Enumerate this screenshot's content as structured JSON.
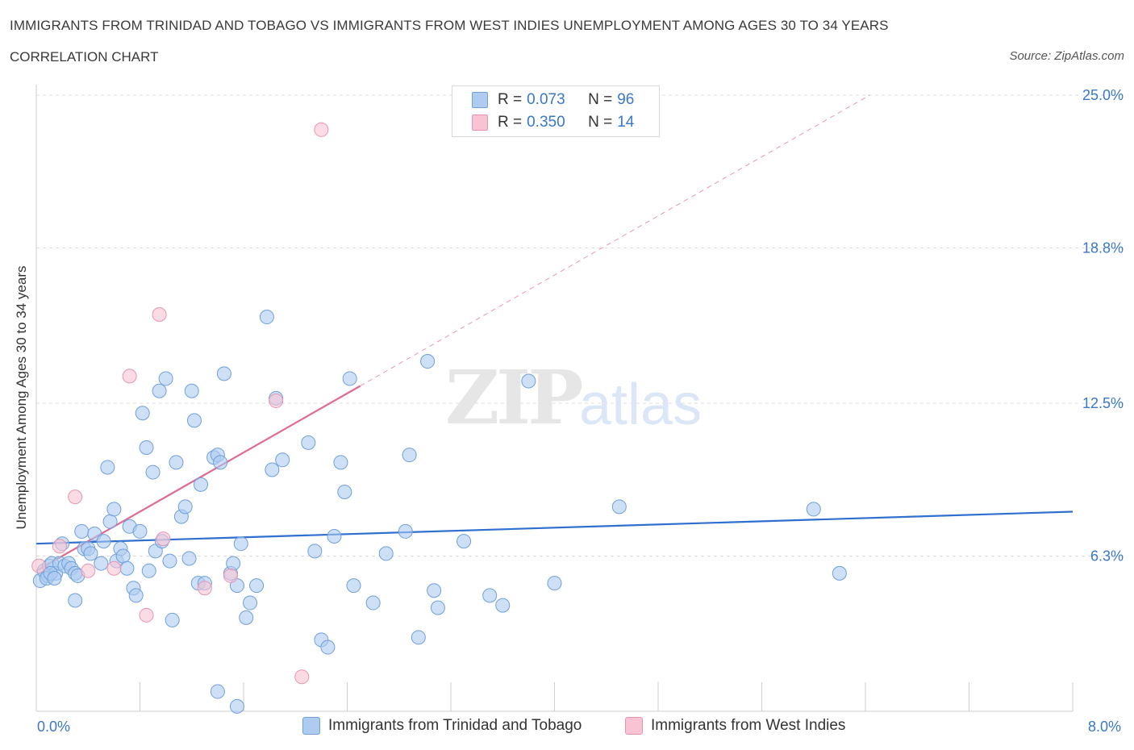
{
  "header": {
    "title": "IMMIGRANTS FROM TRINIDAD AND TOBAGO VS IMMIGRANTS FROM WEST INDIES UNEMPLOYMENT AMONG AGES 30 TO 34 YEARS",
    "subtitle": "CORRELATION CHART",
    "source": "Source: ZipAtlas.com"
  },
  "legend": {
    "rows": [
      {
        "r_label": "R =",
        "r_value": "0.073",
        "n_label": "N =",
        "n_value": "96"
      },
      {
        "r_label": "R =",
        "r_value": "0.350",
        "n_label": "N =",
        "n_value": "14"
      }
    ]
  },
  "watermark": {
    "zip": "ZIP",
    "atlas": "atlas"
  },
  "colors": {
    "blue_fill": "#aecbf0",
    "blue_stroke": "#6f9fdc",
    "blue_line": "#2f6fcf",
    "pink_fill": "#f8c4d4",
    "pink_stroke": "#e894b0",
    "pink_line": "#e06a93",
    "tick_text": "#3a78c9",
    "grid": "#dddddd"
  },
  "chart_data": {
    "type": "scatter",
    "title": "IMMIGRANTS FROM TRINIDAD AND TOBAGO VS IMMIGRANTS FROM WEST INDIES UNEMPLOYMENT AMONG AGES 30 TO 34 YEARS",
    "subtitle": "CORRELATION CHART",
    "xlabel": "",
    "ylabel": "Unemployment Among Ages 30 to 34 years",
    "xlim": [
      0,
      8
    ],
    "ylim": [
      0,
      25
    ],
    "x_tick_labels": [
      "0.0%",
      "8.0%"
    ],
    "y_ticks": [
      6.3,
      12.5,
      18.8,
      25.0
    ],
    "y_tick_labels": [
      "6.3%",
      "12.5%",
      "18.8%",
      "25.0%"
    ],
    "grid": true,
    "legend_position": "top-center",
    "series": [
      {
        "name": "Immigrants from Trinidad and Tobago",
        "color": "#aecbf0",
        "trend": {
          "x": [
            0.0,
            8.0
          ],
          "y": [
            6.8,
            8.1
          ]
        },
        "points": [
          [
            0.03,
            5.3
          ],
          [
            0.06,
            5.7
          ],
          [
            0.09,
            5.5
          ],
          [
            0.1,
            5.9
          ],
          [
            0.12,
            6.0
          ],
          [
            0.15,
            5.6
          ],
          [
            0.18,
            6.0
          ],
          [
            0.2,
            6.8
          ],
          [
            0.22,
            5.9
          ],
          [
            0.25,
            6.0
          ],
          [
            0.27,
            5.8
          ],
          [
            0.3,
            5.6
          ],
          [
            0.32,
            5.5
          ],
          [
            0.35,
            7.3
          ],
          [
            0.37,
            6.6
          ],
          [
            0.4,
            6.6
          ],
          [
            0.42,
            6.4
          ],
          [
            0.45,
            7.2
          ],
          [
            0.5,
            6.0
          ],
          [
            0.52,
            6.9
          ],
          [
            0.55,
            9.9
          ],
          [
            0.57,
            7.7
          ],
          [
            0.6,
            8.2
          ],
          [
            0.62,
            6.1
          ],
          [
            0.65,
            6.6
          ],
          [
            0.67,
            6.3
          ],
          [
            0.7,
            5.8
          ],
          [
            0.72,
            7.5
          ],
          [
            0.75,
            5.0
          ],
          [
            0.77,
            4.7
          ],
          [
            0.8,
            7.3
          ],
          [
            0.82,
            12.1
          ],
          [
            0.85,
            10.7
          ],
          [
            0.87,
            5.7
          ],
          [
            0.9,
            9.7
          ],
          [
            0.92,
            6.5
          ],
          [
            0.95,
            13.0
          ],
          [
            0.97,
            6.9
          ],
          [
            1.0,
            13.5
          ],
          [
            1.03,
            6.1
          ],
          [
            1.05,
            3.7
          ],
          [
            1.08,
            10.1
          ],
          [
            1.12,
            7.9
          ],
          [
            1.15,
            8.3
          ],
          [
            1.18,
            6.2
          ],
          [
            1.2,
            13.0
          ],
          [
            1.22,
            11.8
          ],
          [
            1.25,
            5.2
          ],
          [
            1.27,
            9.2
          ],
          [
            1.3,
            5.2
          ],
          [
            1.37,
            10.3
          ],
          [
            1.4,
            10.4
          ],
          [
            1.42,
            10.1
          ],
          [
            1.45,
            13.7
          ],
          [
            1.5,
            5.6
          ],
          [
            1.52,
            6.0
          ],
          [
            1.55,
            5.1
          ],
          [
            1.58,
            6.8
          ],
          [
            1.62,
            3.8
          ],
          [
            1.7,
            5.1
          ],
          [
            1.78,
            16.0
          ],
          [
            1.82,
            9.8
          ],
          [
            1.85,
            12.7
          ],
          [
            1.9,
            10.2
          ],
          [
            2.1,
            10.9
          ],
          [
            2.15,
            6.5
          ],
          [
            2.2,
            2.9
          ],
          [
            2.25,
            2.6
          ],
          [
            2.3,
            7.1
          ],
          [
            2.35,
            10.1
          ],
          [
            2.38,
            8.9
          ],
          [
            2.42,
            13.5
          ],
          [
            2.45,
            5.1
          ],
          [
            2.6,
            4.4
          ],
          [
            2.7,
            6.4
          ],
          [
            2.85,
            7.3
          ],
          [
            2.88,
            10.4
          ],
          [
            2.95,
            3.0
          ],
          [
            3.02,
            14.2
          ],
          [
            3.07,
            4.9
          ],
          [
            3.1,
            4.2
          ],
          [
            3.3,
            6.9
          ],
          [
            3.5,
            4.7
          ],
          [
            3.6,
            4.3
          ],
          [
            3.8,
            13.4
          ],
          [
            4.0,
            5.2
          ],
          [
            4.5,
            8.3
          ],
          [
            6.0,
            8.2
          ],
          [
            6.2,
            5.6
          ],
          [
            0.08,
            5.4
          ],
          [
            0.11,
            5.6
          ],
          [
            0.14,
            5.4
          ],
          [
            0.3,
            4.5
          ],
          [
            1.4,
            0.8
          ],
          [
            1.55,
            0.2
          ],
          [
            1.65,
            4.4
          ]
        ]
      },
      {
        "name": "Immigrants from West Indies",
        "color": "#f8c4d4",
        "trend": {
          "x": [
            0.0,
            2.5
          ],
          "y": [
            5.7,
            13.2
          ],
          "dashed_extension": {
            "x": [
              2.5,
              8.0
            ],
            "y": [
              13.2,
              29.7
            ]
          }
        },
        "points": [
          [
            0.02,
            5.9
          ],
          [
            0.18,
            6.7
          ],
          [
            0.3,
            8.7
          ],
          [
            0.4,
            5.7
          ],
          [
            0.6,
            5.8
          ],
          [
            0.72,
            13.6
          ],
          [
            0.85,
            3.9
          ],
          [
            0.95,
            16.1
          ],
          [
            0.98,
            7.0
          ],
          [
            1.3,
            5.0
          ],
          [
            1.5,
            5.5
          ],
          [
            1.85,
            12.6
          ],
          [
            2.05,
            1.4
          ],
          [
            2.2,
            23.6
          ]
        ]
      }
    ]
  }
}
